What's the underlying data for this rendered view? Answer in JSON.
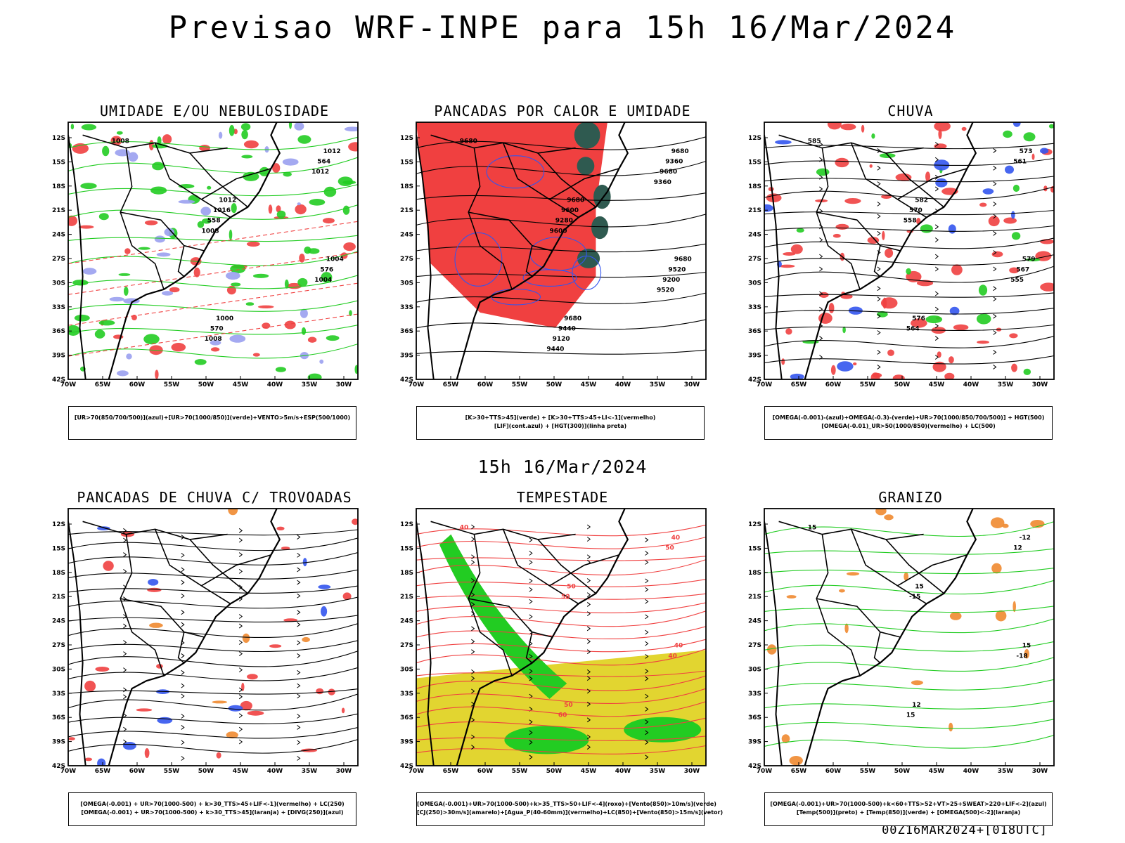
{
  "header": {
    "title": "Previsao WRF-INPE  para 15h 16/Mar/2024"
  },
  "mid_title": "15h 16/Mar/2024",
  "footer": "00Z16MAR2024+[018UTC]",
  "axes": {
    "lat_labels": [
      "12S",
      "15S",
      "18S",
      "21S",
      "24S",
      "27S",
      "30S",
      "33S",
      "36S",
      "39S",
      "42S"
    ],
    "lon_labels": [
      "70W",
      "65W",
      "60W",
      "55W",
      "50W",
      "45W",
      "40W",
      "35W",
      "30W"
    ]
  },
  "panels": [
    {
      "id": "umidade",
      "title": "UMIDADE E/OU NEBULOSIDADE",
      "legend": [
        "[UR>70(850/700/500)](azul)+[UR>70(1000/850)](verde)+VENTO>5m/s+ESP(500/1000)"
      ],
      "contour_labels": [
        "1008",
        "1012",
        "1004",
        "1000",
        "1012",
        "1016",
        "576",
        "570",
        "564",
        "558",
        "1004",
        "1008",
        "1012",
        "1008"
      ]
    },
    {
      "id": "pancadas-calor",
      "title": "PANCADAS POR CALOR E UMIDADE",
      "legend": [
        "[K>30+TTS>45](verde) + [K>30+TTS>45+LI<-1](vermelho)",
        "[LIF](cont.azul) + [HGT(300)](linha preta)"
      ],
      "contour_labels": [
        "9680",
        "9680",
        "9680",
        "9680",
        "9680",
        "9600",
        "9520",
        "9440",
        "9360",
        "9280",
        "9200",
        "9120",
        "9680",
        "9600",
        "9520",
        "9440",
        "9360"
      ]
    },
    {
      "id": "chuva",
      "title": "CHUVA",
      "legend": [
        "[OMEGA(-0.001)-(azul)+OMEGA(-0.3)-(verde)+UR>70(1000/850/700/500)] + HGT(500)",
        "[OMEGA(-0.01)_UR>50(1000/850)(vermelho) + LC(500)"
      ],
      "contour_labels": [
        "585",
        "582",
        "579",
        "576",
        "573",
        "570",
        "567",
        "564",
        "561",
        "558",
        "555"
      ]
    },
    {
      "id": "pancadas-trovoadas",
      "title": "PANCADAS DE CHUVA C/ TROVOADAS",
      "legend": [
        "[OMEGA(-0.001) + UR>70(1000-500) + k>30_TTS>45+LIF<-1](vermelho) + LC(250)",
        "[OMEGA(-0.001) + UR>70(1000-500) + k>30_TTS>45](laranja) + [DIVG(250)](azul)"
      ],
      "contour_labels": []
    },
    {
      "id": "tempestade",
      "title": "TEMPESTADE",
      "legend": [
        "[OMEGA(-0.001)+UR>70(1000-500)+k>35_TTS>50+LIF<-4](roxo)+[Vento(850)>10m/s](verde)",
        "[CJ(250)>30m/s](amarelo)+[Agua_P(40-60mm)](vermelho)+LC(850)+[Vento(850)>15m/s](vetor)"
      ],
      "contour_labels": [
        "40",
        "50",
        "40",
        "50",
        "40",
        "50",
        "40",
        "60",
        "50"
      ]
    },
    {
      "id": "granizo",
      "title": "GRANIZO",
      "legend": [
        "[OMEGA(-0.001)+UR>70(1000-500)+k<60+TTS>52+VT>25+SWEAT>220+LIF<-2](azul)",
        "[Temp(500)](preto) + [Temp(850)](verde) + [OMEGA(500)<-2](laranja)"
      ],
      "contour_labels": [
        "15",
        "15",
        "15",
        "12",
        "-12",
        "-15",
        "-18",
        "15",
        "12"
      ]
    }
  ],
  "colors": {
    "red": "#f04040",
    "green": "#22cc22",
    "blue": "#3355ee",
    "lightblue": "#9aa0f0",
    "dark_teal": "#2f5a50",
    "yellow": "#e2d530",
    "orange": "#f08a30",
    "black": "#000000"
  }
}
